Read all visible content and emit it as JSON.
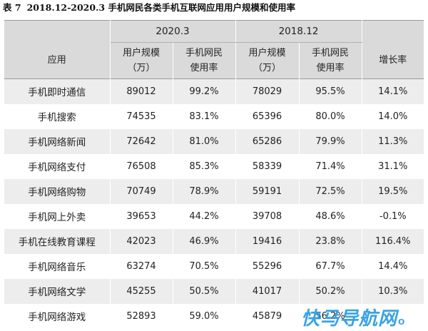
{
  "caption": {
    "label": "表 7",
    "title": "2018.12-2020.3 手机网民各类手机互联网应用用户规模和使用率"
  },
  "header": {
    "app_col": "应用",
    "period_a": "2020.3",
    "period_b": "2018.12",
    "users_line1": "用户规模",
    "users_line2": "（万）",
    "rate_line1": "手机网民",
    "rate_line2": "使用率",
    "growth": "增长率"
  },
  "rows": [
    {
      "app": "手机即时通信",
      "users_a": "89012",
      "rate_a": "99.2%",
      "users_b": "78029",
      "rate_b": "95.5%",
      "growth": "14.1%"
    },
    {
      "app": "手机搜索",
      "users_a": "74535",
      "rate_a": "83.1%",
      "users_b": "65396",
      "rate_b": "80.0%",
      "growth": "14.0%"
    },
    {
      "app": "手机网络新闻",
      "users_a": "72642",
      "rate_a": "81.0%",
      "users_b": "65286",
      "rate_b": "79.9%",
      "growth": "11.3%"
    },
    {
      "app": "手机网络支付",
      "users_a": "76508",
      "rate_a": "85.3%",
      "users_b": "58339",
      "rate_b": "71.4%",
      "growth": "31.1%"
    },
    {
      "app": "手机网络购物",
      "users_a": "70749",
      "rate_a": "78.9%",
      "users_b": "59191",
      "rate_b": "72.5%",
      "growth": "19.5%"
    },
    {
      "app": "手机网上外卖",
      "users_a": "39653",
      "rate_a": "44.2%",
      "users_b": "39708",
      "rate_b": "48.6%",
      "growth": "-0.1%"
    },
    {
      "app": "手机在线教育课程",
      "users_a": "42023",
      "rate_a": "46.9%",
      "users_b": "19416",
      "rate_b": "23.8%",
      "growth": "116.4%"
    },
    {
      "app": "手机网络音乐",
      "users_a": "63274",
      "rate_a": "70.5%",
      "users_b": "55296",
      "rate_b": "67.7%",
      "growth": "14.4%"
    },
    {
      "app": "手机网络文学",
      "users_a": "45255",
      "rate_a": "50.5%",
      "users_b": "41017",
      "rate_b": "50.2%",
      "growth": "10.3%"
    },
    {
      "app": "手机网络游戏",
      "users_a": "52893",
      "rate_a": "59.0%",
      "users_b": "45879",
      "rate_b": "56.2%",
      "growth": ""
    }
  ],
  "watermark": {
    "text": "快马导航网",
    "suffix": "O"
  }
}
